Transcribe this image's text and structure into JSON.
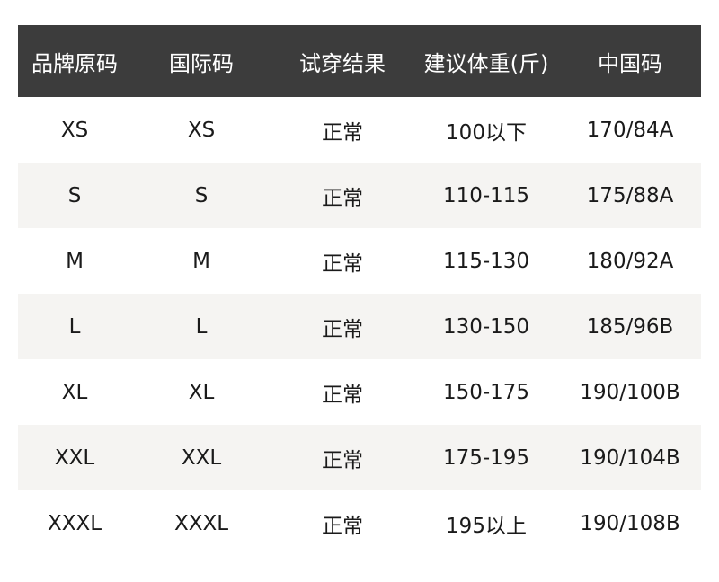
{
  "colors": {
    "header_bg": "#3c3c3c",
    "header_text": "#ffffff",
    "alt_row_bg": "#f5f4f2",
    "text": "#1a1a1a"
  },
  "headers": [
    "品牌原码",
    "国际码",
    "试穿结果",
    "建议体重(斤)",
    "中国码"
  ],
  "rows": [
    [
      "XS",
      "XS",
      "正常",
      "100以下",
      "170/84A"
    ],
    [
      "S",
      "S",
      "正常",
      "110-115",
      "175/88A"
    ],
    [
      "M",
      "M",
      "正常",
      "115-130",
      "180/92A"
    ],
    [
      "L",
      "L",
      "正常",
      "130-150",
      "185/96B"
    ],
    [
      "XL",
      "XL",
      "正常",
      "150-175",
      "190/100B"
    ],
    [
      "XXL",
      "XXL",
      "正常",
      "175-195",
      "190/104B"
    ],
    [
      "XXXL",
      "XXXL",
      "正常",
      "195以上",
      "190/108B"
    ]
  ]
}
